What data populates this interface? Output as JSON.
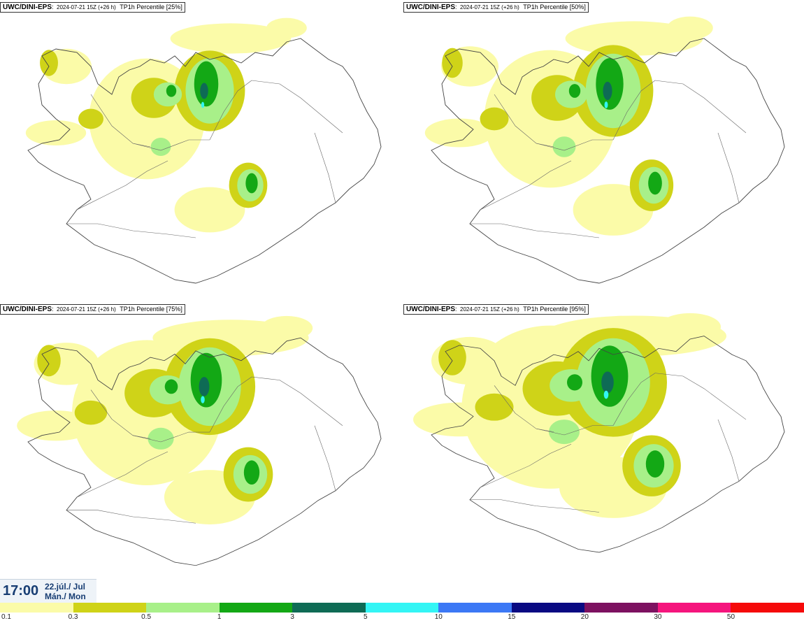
{
  "panels": [
    {
      "model": "UWC/DINI-EPS",
      "run": "2024-07-21 15Z (+26 h)",
      "field": "TP1h Percentile [25%]",
      "scale": 0.72
    },
    {
      "model": "UWC/DINI-EPS",
      "run": "2024-07-21 15Z (+26 h)",
      "field": "TP1h Percentile [50%]",
      "scale": 0.82
    },
    {
      "model": "UWC/DINI-EPS",
      "run": "2024-07-21 15Z (+26 h)",
      "field": "TP1h Percentile [75%]",
      "scale": 0.93
    },
    {
      "model": "UWC/DINI-EPS",
      "run": "2024-07-21 15Z (+26 h)",
      "field": "TP1h Percentile [95%]",
      "scale": 1.1
    }
  ],
  "valid_time": {
    "time": "17:00",
    "date_line1": "22.júl./ Jul",
    "date_line2": "Mán./ Mon"
  },
  "legend": {
    "ticks": [
      "0.1",
      "0.3",
      "0.5",
      "1",
      "3",
      "5",
      "10",
      "15",
      "20",
      "30",
      "50"
    ],
    "colors": [
      "#fbfba8",
      "#cfd318",
      "#a8f089",
      "#13a815",
      "#0e6b55",
      "#33f5f5",
      "#3c78f5",
      "#0a0a82",
      "#7d1160",
      "#f5157d",
      "#f50a0a"
    ]
  }
}
